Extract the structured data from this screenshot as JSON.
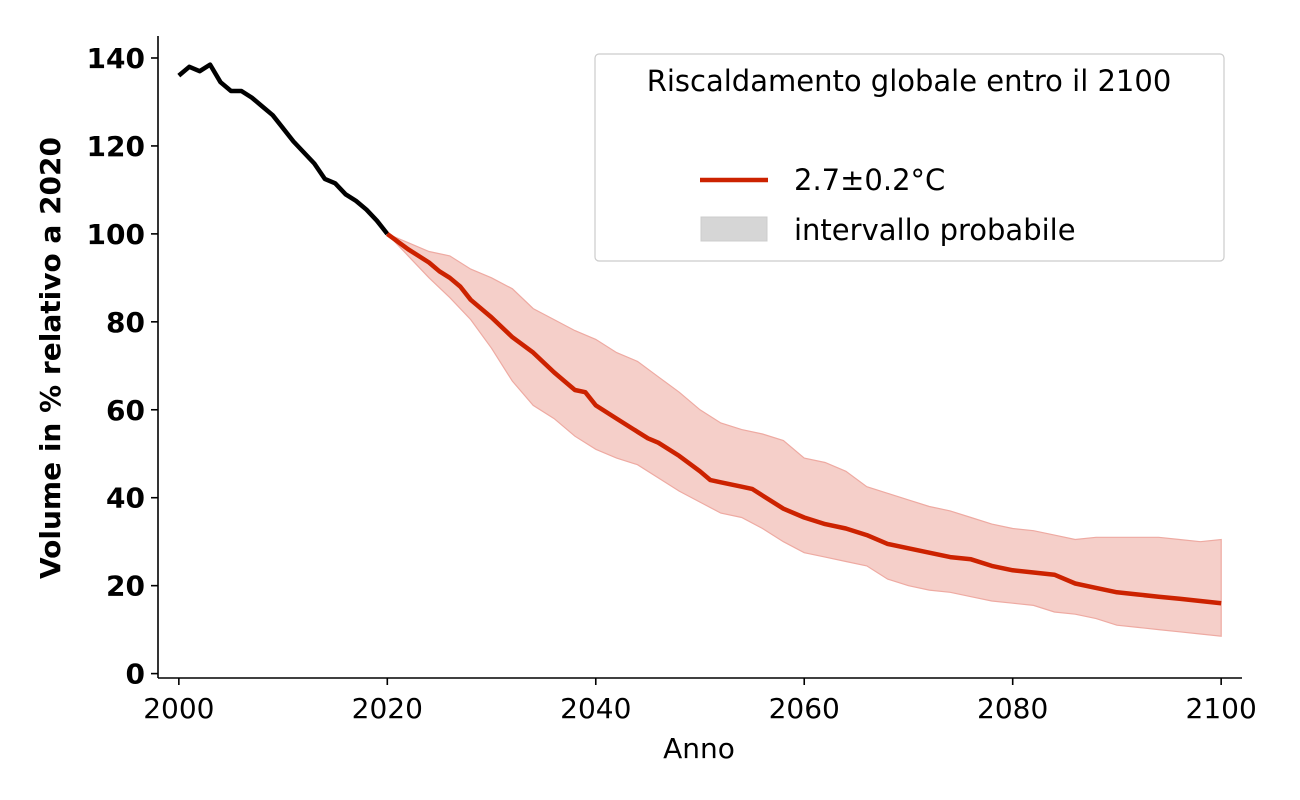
{
  "chart_data": {
    "type": "line",
    "xlabel": "Anno",
    "ylabel": "Volume in % relativo a 2020",
    "xlim": [
      1998,
      2102
    ],
    "ylim": [
      -1,
      145
    ],
    "xticks": [
      2000,
      2020,
      2040,
      2060,
      2080,
      2100
    ],
    "yticks": [
      0,
      20,
      40,
      60,
      80,
      100,
      120,
      140
    ],
    "grid": false,
    "legend": {
      "title": "Riscaldamento globale entro il 2100",
      "placement": "top-right",
      "entries": [
        {
          "label": "2.7±0.2°C",
          "kind": "line"
        },
        {
          "label": "intervallo probabile",
          "kind": "patch"
        }
      ]
    },
    "colors": {
      "historical": "#000000",
      "projection": "#cc2200",
      "band_fill": "#f5cfc9",
      "band_edge": "#eeaaa2",
      "legend_patch": "#d6d6d6",
      "legend_border": "#cccccc"
    },
    "series": [
      {
        "name": "historical",
        "x": [
          2000,
          2001,
          2002,
          2003,
          2004,
          2005,
          2006,
          2007,
          2008,
          2009,
          2010,
          2011,
          2012,
          2013,
          2014,
          2015,
          2016,
          2017,
          2018,
          2019,
          2020
        ],
        "values": [
          136,
          138,
          137,
          138.5,
          134.5,
          132.5,
          132.5,
          131,
          129,
          127,
          124,
          121,
          118.5,
          116,
          112.5,
          111.5,
          109,
          107.5,
          105.5,
          103,
          100
        ]
      },
      {
        "name": "2.7±0.2°C",
        "x": [
          2020,
          2022,
          2024,
          2025,
          2026,
          2027,
          2028,
          2030,
          2032,
          2034,
          2036,
          2038,
          2039,
          2040,
          2042,
          2044,
          2045,
          2046,
          2048,
          2050,
          2051,
          2052,
          2054,
          2055,
          2056,
          2058,
          2060,
          2062,
          2064,
          2066,
          2068,
          2070,
          2072,
          2074,
          2076,
          2078,
          2080,
          2082,
          2084,
          2086,
          2088,
          2090,
          2092,
          2094,
          2096,
          2098,
          2100
        ],
        "values": [
          100,
          96.5,
          93.5,
          91.5,
          90,
          88,
          85,
          81,
          76.5,
          73,
          68.5,
          64.5,
          64,
          61,
          58,
          55,
          53.5,
          52.5,
          49.5,
          46,
          44,
          43.5,
          42.5,
          42,
          40.5,
          37.5,
          35.5,
          34,
          33,
          31.5,
          29.5,
          28.5,
          27.5,
          26.5,
          26,
          24.5,
          23.5,
          23,
          22.5,
          20.5,
          19.5,
          18.5,
          18,
          17.5,
          17,
          16.5,
          16
        ]
      },
      {
        "name": "intervallo probabile",
        "x": [
          2020,
          2022,
          2024,
          2026,
          2028,
          2030,
          2032,
          2034,
          2036,
          2038,
          2040,
          2042,
          2044,
          2046,
          2048,
          2050,
          2052,
          2054,
          2056,
          2058,
          2060,
          2062,
          2064,
          2066,
          2068,
          2070,
          2072,
          2074,
          2076,
          2078,
          2080,
          2082,
          2084,
          2086,
          2088,
          2090,
          2092,
          2094,
          2096,
          2098,
          2100
        ],
        "upper": [
          100,
          98,
          96,
          95,
          92,
          90,
          87.5,
          83,
          80.5,
          78,
          76,
          73,
          71,
          67.5,
          64,
          60,
          57,
          55.5,
          54.5,
          53,
          49,
          48,
          46,
          42.5,
          41,
          39.5,
          38,
          37,
          35.5,
          34,
          33,
          32.5,
          31.5,
          30.5,
          31,
          31,
          31,
          31,
          30.5,
          30,
          30.5
        ],
        "lower": [
          100,
          95,
          90,
          85.5,
          80.5,
          74,
          66.5,
          61,
          58,
          54,
          51,
          49,
          47.5,
          44.5,
          41.5,
          39,
          36.5,
          35.5,
          33,
          30,
          27.5,
          26.5,
          25.5,
          24.5,
          21.5,
          20,
          19,
          18.5,
          17.5,
          16.5,
          16,
          15.5,
          14,
          13.5,
          12.5,
          11,
          10.5,
          10,
          9.5,
          9,
          8.5
        ]
      }
    ]
  }
}
